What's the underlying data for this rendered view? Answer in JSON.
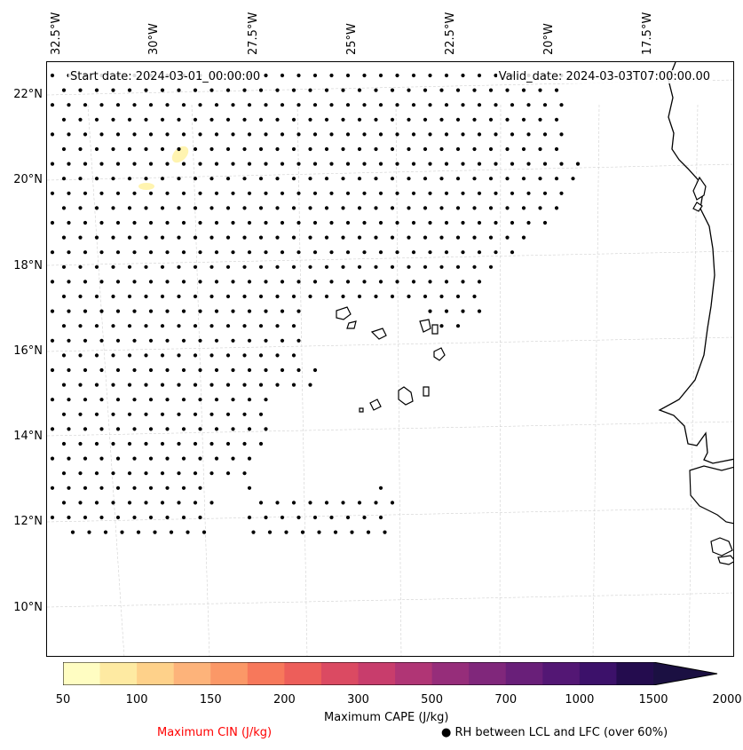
{
  "map": {
    "lon_labels": [
      "32.5°W",
      "30°W",
      "27.5°W",
      "25°W",
      "22.5°W",
      "20°W",
      "17.5°W"
    ],
    "lat_labels": [
      "22°N",
      "20°N",
      "18°N",
      "16°N",
      "14°N",
      "12°N",
      "10°N"
    ],
    "start_date": "Start date: 2024-03-01_00:00:00",
    "valid_date": "Valid_date: 2024-03-03T07:00:00.00",
    "colors": {
      "coastline": "#000000",
      "gridline": "#d0d0d0",
      "dots": "#000000",
      "low_cape_patch": "#fff4b0"
    }
  },
  "colorbar": {
    "label": "Maximum CAPE (J/kg)",
    "tick_labels": [
      "50",
      "100",
      "150",
      "200",
      "300",
      "500",
      "700",
      "1000",
      "1500",
      "2000"
    ],
    "colors": [
      "#fffdc2",
      "#feeaa2",
      "#fed18a",
      "#fdb37a",
      "#fb9867",
      "#f7785b",
      "#ed5e5a",
      "#db4a62",
      "#c83d6c",
      "#b03575",
      "#962d7a",
      "#80277b",
      "#691f79",
      "#531774",
      "#3c116a",
      "#240c4e"
    ],
    "extend_color": "#1b1042"
  },
  "legend": {
    "cin_label": "Maximum CIN (J/kg)",
    "cin_color": "#ff0000",
    "rh_marker": "●",
    "rh_label": "RH between LCL and LFC (over 60%)"
  }
}
